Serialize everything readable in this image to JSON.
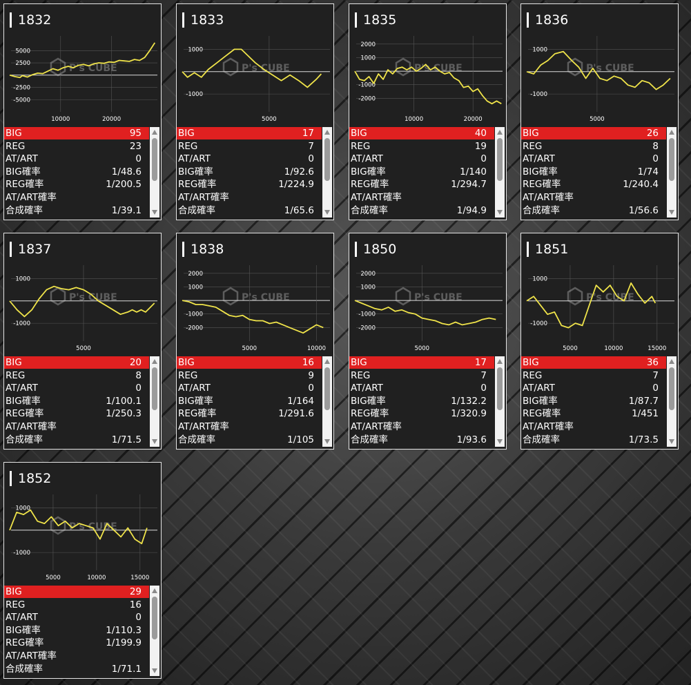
{
  "labels": {
    "big": "BIG",
    "reg": "REG",
    "at_art": "AT/ART",
    "big_rate": "BIG確率",
    "reg_rate": "REG確率",
    "at_art_rate": "AT/ART確率",
    "combined_rate": "合成確率"
  },
  "colors": {
    "line": "#f0e44a",
    "big_row": "#e02020",
    "panel": "#202020",
    "grid": "#555555",
    "zero_line": "#dcdcdc"
  },
  "watermark": "P's CUBE",
  "machines": [
    {
      "id": "1832",
      "stats": {
        "big": "95",
        "reg": "23",
        "at_art": "0",
        "big_rate": "1/48.6",
        "reg_rate": "1/200.5",
        "at_art_rate": "",
        "combined_rate": "1/39.1"
      },
      "chart_data": {
        "type": "line",
        "xlim": [
          0,
          29000
        ],
        "ylim": [
          -7500,
          8000
        ],
        "xticks": [
          10000,
          20000
        ],
        "yticks": [
          -5000,
          -2500,
          0,
          2500,
          5000
        ],
        "ytick_labels": [
          "-5000",
          "-2500",
          "",
          "2500",
          "5000"
        ],
        "x": [
          0,
          1000,
          2000,
          2500,
          3500,
          4500,
          5500,
          6500,
          7500,
          8500,
          9500,
          10500,
          11500,
          12500,
          13500,
          14500,
          15500,
          16500,
          17500,
          18500,
          19500,
          20500,
          21500,
          22500,
          23500,
          24500,
          25500,
          26500,
          27500,
          28500
        ],
        "y": [
          0,
          -300,
          -500,
          -100,
          -400,
          100,
          400,
          300,
          800,
          1300,
          1000,
          1500,
          1800,
          1500,
          2000,
          2200,
          1900,
          2300,
          2500,
          2400,
          2700,
          2600,
          3000,
          2900,
          2800,
          3200,
          3000,
          3600,
          5000,
          6600
        ]
      }
    },
    {
      "id": "1833",
      "stats": {
        "big": "17",
        "reg": "7",
        "at_art": "0",
        "big_rate": "1/92.6",
        "reg_rate": "1/224.9",
        "at_art_rate": "",
        "combined_rate": "1/65.6"
      },
      "chart_data": {
        "type": "line",
        "xlim": [
          0,
          8500
        ],
        "ylim": [
          -1800,
          1600
        ],
        "xticks": [
          5000
        ],
        "yticks": [
          -1000,
          0,
          1000
        ],
        "ytick_labels": [
          "-1000",
          "",
          "1000"
        ],
        "x": [
          0,
          300,
          700,
          1100,
          1500,
          2000,
          2500,
          3000,
          3400,
          3800,
          4200,
          4700,
          5200,
          5700,
          6200,
          6700,
          7200,
          7700,
          8000
        ],
        "y": [
          0,
          -250,
          -50,
          -250,
          100,
          400,
          700,
          1000,
          1000,
          700,
          400,
          100,
          -150,
          -400,
          -150,
          -400,
          -700,
          -350,
          -100
        ]
      }
    },
    {
      "id": "1835",
      "stats": {
        "big": "40",
        "reg": "19",
        "at_art": "0",
        "big_rate": "1/140",
        "reg_rate": "1/294.7",
        "at_art_rate": "",
        "combined_rate": "1/94.9"
      },
      "chart_data": {
        "type": "line",
        "xlim": [
          0,
          25000
        ],
        "ylim": [
          -3000,
          2600
        ],
        "xticks": [
          10000,
          20000
        ],
        "yticks": [
          -2000,
          -1000,
          0,
          1000,
          2000
        ],
        "ytick_labels": [
          "-2000",
          "-1000",
          "",
          "1000",
          "2000"
        ],
        "x": [
          0,
          800,
          1600,
          2400,
          3200,
          4000,
          4800,
          5600,
          6400,
          7200,
          8000,
          8800,
          9600,
          10400,
          11200,
          12000,
          12800,
          13600,
          14400,
          15200,
          16000,
          16800,
          17600,
          18400,
          19200,
          20000,
          20800,
          21600,
          22400,
          23200,
          24000,
          24800
        ],
        "y": [
          0,
          -600,
          -700,
          -400,
          -900,
          -200,
          -600,
          100,
          -200,
          200,
          300,
          100,
          300,
          0,
          200,
          500,
          100,
          300,
          0,
          -200,
          -100,
          -500,
          -700,
          -1200,
          -1100,
          -1500,
          -1300,
          -1800,
          -2200,
          -2400,
          -2200,
          -2400
        ]
      }
    },
    {
      "id": "1836",
      "stats": {
        "big": "26",
        "reg": "8",
        "at_art": "0",
        "big_rate": "1/74",
        "reg_rate": "1/240.4",
        "at_art_rate": "",
        "combined_rate": "1/56.6"
      },
      "chart_data": {
        "type": "line",
        "xlim": [
          0,
          10500
        ],
        "ylim": [
          -1800,
          1600
        ],
        "xticks": [
          5000
        ],
        "yticks": [
          -1000,
          0,
          1000
        ],
        "ytick_labels": [
          "-1000",
          "",
          "1000"
        ],
        "x": [
          0,
          500,
          1000,
          1500,
          2000,
          2600,
          3200,
          3700,
          4200,
          4700,
          5200,
          5700,
          6200,
          6700,
          7200,
          7700,
          8200,
          8700,
          9200,
          9700,
          10200
        ],
        "y": [
          0,
          -100,
          300,
          500,
          800,
          900,
          500,
          200,
          -300,
          150,
          -300,
          -400,
          -200,
          -300,
          -600,
          -700,
          -400,
          -500,
          -800,
          -600,
          -300
        ]
      }
    },
    {
      "id": "1837",
      "stats": {
        "big": "20",
        "reg": "8",
        "at_art": "0",
        "big_rate": "1/100.1",
        "reg_rate": "1/250.3",
        "at_art_rate": "",
        "combined_rate": "1/71.5"
      },
      "chart_data": {
        "type": "line",
        "xlim": [
          0,
          10000
        ],
        "ylim": [
          -1800,
          1600
        ],
        "xticks": [
          5000
        ],
        "yticks": [
          -1000,
          0,
          1000
        ],
        "ytick_labels": [
          "-1000",
          "",
          "1000"
        ],
        "x": [
          0,
          500,
          1000,
          1500,
          2000,
          2500,
          3000,
          3500,
          4000,
          4500,
          5000,
          5500,
          6000,
          6500,
          7000,
          7500,
          8000,
          8300,
          8600,
          8900,
          9200,
          9500,
          9800
        ],
        "y": [
          0,
          -400,
          -700,
          -400,
          100,
          500,
          650,
          550,
          500,
          600,
          500,
          300,
          0,
          -200,
          -400,
          -600,
          -500,
          -400,
          -500,
          -400,
          -500,
          -300,
          -100
        ]
      }
    },
    {
      "id": "1838",
      "stats": {
        "big": "16",
        "reg": "9",
        "at_art": "0",
        "big_rate": "1/164",
        "reg_rate": "1/291.6",
        "at_art_rate": "",
        "combined_rate": "1/105"
      },
      "chart_data": {
        "type": "line",
        "xlim": [
          0,
          11000
        ],
        "ylim": [
          -3000,
          2600
        ],
        "xticks": [
          5000,
          10000
        ],
        "yticks": [
          -2000,
          -1000,
          0,
          1000,
          2000
        ],
        "ytick_labels": [
          "-2000",
          "-1000",
          "",
          "1000",
          "2000"
        ],
        "x": [
          0,
          500,
          1000,
          1500,
          2000,
          2500,
          3000,
          3500,
          4000,
          4500,
          5000,
          5500,
          6000,
          6500,
          7000,
          7500,
          8000,
          8500,
          9000,
          9500,
          10000,
          10500
        ],
        "y": [
          0,
          -100,
          -300,
          -300,
          -400,
          -500,
          -800,
          -1100,
          -1200,
          -1100,
          -1400,
          -1500,
          -1500,
          -1700,
          -1600,
          -1800,
          -2000,
          -2200,
          -2400,
          -2100,
          -1800,
          -2000
        ]
      }
    },
    {
      "id": "1850",
      "stats": {
        "big": "17",
        "reg": "7",
        "at_art": "0",
        "big_rate": "1/132.2",
        "reg_rate": "1/320.9",
        "at_art_rate": "",
        "combined_rate": "1/93.6"
      },
      "chart_data": {
        "type": "line",
        "xlim": [
          0,
          11000
        ],
        "ylim": [
          -3000,
          2600
        ],
        "xticks": [
          5000
        ],
        "yticks": [
          -2000,
          -1000,
          0,
          1000,
          2000
        ],
        "ytick_labels": [
          "-2000",
          "-1000",
          "",
          "1000",
          "2000"
        ],
        "x": [
          0,
          500,
          1000,
          1500,
          2000,
          2500,
          3000,
          3500,
          4000,
          4500,
          5000,
          5500,
          6000,
          6500,
          7000,
          7500,
          8000,
          8500,
          9000,
          9500,
          10000,
          10500
        ],
        "y": [
          0,
          -200,
          -400,
          -600,
          -700,
          -500,
          -800,
          -700,
          -900,
          -1000,
          -1300,
          -1400,
          -1500,
          -1700,
          -1800,
          -1600,
          -1800,
          -1700,
          -1600,
          -1400,
          -1300,
          -1400
        ]
      }
    },
    {
      "id": "1851",
      "stats": {
        "big": "36",
        "reg": "7",
        "at_art": "0",
        "big_rate": "1/87.7",
        "reg_rate": "1/451",
        "at_art_rate": "",
        "combined_rate": "1/73.5"
      },
      "chart_data": {
        "type": "line",
        "xlim": [
          0,
          17000
        ],
        "ylim": [
          -1800,
          1600
        ],
        "xticks": [
          5000,
          10000,
          15000
        ],
        "yticks": [
          -1000,
          0,
          1000
        ],
        "ytick_labels": [
          "-1000",
          "",
          "1000"
        ],
        "x": [
          0,
          800,
          1600,
          2400,
          3200,
          4000,
          4800,
          5600,
          6400,
          7200,
          8000,
          8800,
          9600,
          10400,
          11200,
          12000,
          12800,
          13600,
          14400,
          14800
        ],
        "y": [
          0,
          200,
          -200,
          -600,
          -500,
          -1100,
          -1200,
          -1000,
          -1100,
          -200,
          700,
          400,
          700,
          200,
          0,
          800,
          300,
          -100,
          200,
          -100
        ]
      }
    },
    {
      "id": "1852",
      "stats": {
        "big": "29",
        "reg": "16",
        "at_art": "0",
        "big_rate": "1/110.3",
        "reg_rate": "1/199.9",
        "at_art_rate": "",
        "combined_rate": "1/71.1"
      },
      "chart_data": {
        "type": "line",
        "xlim": [
          0,
          17000
        ],
        "ylim": [
          -1800,
          1600
        ],
        "xticks": [
          5000,
          10000,
          15000
        ],
        "yticks": [
          -1000,
          0,
          1000
        ],
        "ytick_labels": [
          "-1000",
          "",
          "1000"
        ],
        "x": [
          0,
          800,
          1600,
          2400,
          3200,
          4000,
          4800,
          5600,
          6400,
          7200,
          8000,
          8800,
          9600,
          10400,
          11200,
          12000,
          12800,
          13600,
          14400,
          15200,
          15800
        ],
        "y": [
          0,
          800,
          700,
          900,
          400,
          300,
          600,
          200,
          400,
          100,
          300,
          200,
          100,
          -400,
          300,
          0,
          -300,
          100,
          -400,
          -600,
          100
        ]
      }
    }
  ]
}
